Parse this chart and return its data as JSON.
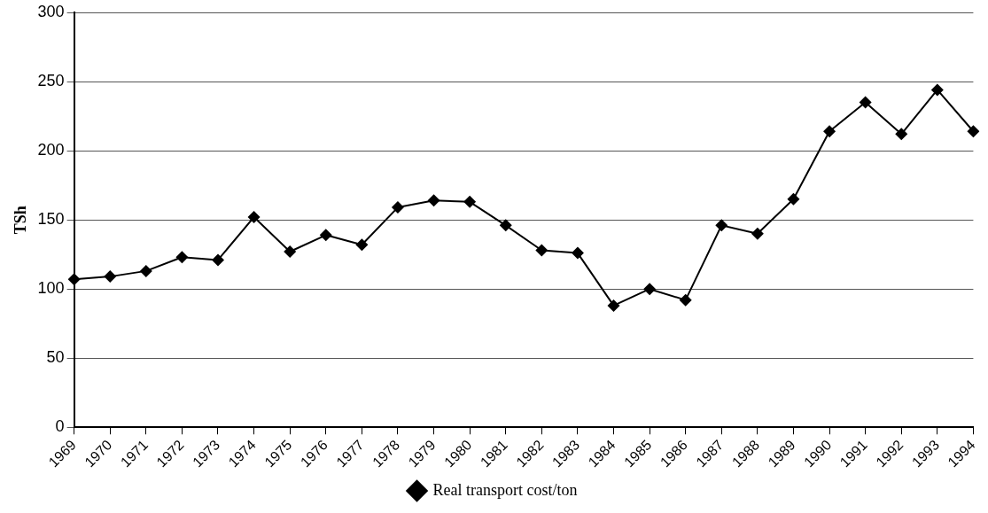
{
  "chart_data": {
    "type": "line",
    "ylabel": "TSh",
    "categories": [
      "1969",
      "1970",
      "1971",
      "1972",
      "1973",
      "1974",
      "1975",
      "1976",
      "1977",
      "1978",
      "1979",
      "1980",
      "1981",
      "1982",
      "1983",
      "1984",
      "1985",
      "1986",
      "1987",
      "1988",
      "1989",
      "1990",
      "1991",
      "1992",
      "1993",
      "1994"
    ],
    "series": [
      {
        "name": "Real transport cost/ton",
        "color": "#000000",
        "values": [
          107,
          109,
          113,
          123,
          121,
          152,
          127,
          139,
          132,
          159,
          164,
          163,
          146,
          128,
          126,
          88,
          100,
          92,
          146,
          140,
          165,
          214,
          235,
          212,
          244,
          214
        ]
      }
    ],
    "ylim": [
      0,
      300
    ],
    "yticks": [
      0,
      50,
      100,
      150,
      200,
      250,
      300
    ],
    "grid": "y",
    "legend": "bottom",
    "marker": "diamond",
    "line_style": "solid"
  }
}
